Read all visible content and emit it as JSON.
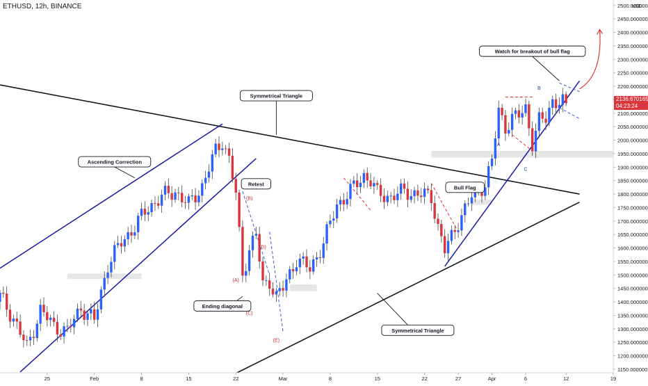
{
  "header": {
    "symbol": "ETHUSD, 12h, BINANCE"
  },
  "colors": {
    "up": "#2962ff",
    "down": "#d9363e",
    "trendline": "#131722",
    "channel": "#1a1aa6",
    "fib_blue": "#3b5bdb",
    "fib_red": "#e03131",
    "arrow": "#e03131",
    "sr_zone": "#e6e6e6",
    "wave_label_red": "#c92a2a",
    "wave_label_blue": "#1c3fb8"
  },
  "price_tag": {
    "price": "2136.670165",
    "countdown": "04:23:24"
  },
  "chart_data": {
    "type": "candlestick",
    "title": "ETHUSD, 12h, BINANCE",
    "y_axis": {
      "unit": "USD",
      "min": 1137,
      "max": 2520,
      "ticks": [
        "1150.000000",
        "1200.000000",
        "1250.000000",
        "1300.000000",
        "1350.000000",
        "1400.000000",
        "1450.000000",
        "1500.000000",
        "1550.000000",
        "1600.000000",
        "1650.000000",
        "1700.000000",
        "1750.000000",
        "1800.000000",
        "1850.000000",
        "1900.000000",
        "1950.000000",
        "2000.000000",
        "2050.000000",
        "2100.000000",
        "2150.000000",
        "2200.000000",
        "2250.000000",
        "2300.000000",
        "2350.000000",
        "2400.000000",
        "2450.000000",
        "2500.000000"
      ],
      "tick_values": [
        1150,
        1200,
        1250,
        1300,
        1350,
        1400,
        1450,
        1500,
        1550,
        1600,
        1650,
        1700,
        1750,
        1800,
        1850,
        1900,
        1950,
        2000,
        2050,
        2100,
        2150,
        2200,
        2250,
        2300,
        2350,
        2400,
        2450,
        2500
      ]
    },
    "x_axis": {
      "start": "2021-01-18",
      "end": "2021-04-19",
      "ticks": [
        {
          "label": "25",
          "date": "2021-01-25"
        },
        {
          "label": "Feb",
          "date": "2021-02-01"
        },
        {
          "label": "8",
          "date": "2021-02-08"
        },
        {
          "label": "15",
          "date": "2021-02-15"
        },
        {
          "label": "22",
          "date": "2021-02-22"
        },
        {
          "label": "Mar",
          "date": "2021-03-01"
        },
        {
          "label": "8",
          "date": "2021-03-08"
        },
        {
          "label": "15",
          "date": "2021-03-15"
        },
        {
          "label": "22",
          "date": "2021-03-22"
        },
        {
          "label": "27",
          "date": "2021-03-27"
        },
        {
          "label": "Apr",
          "date": "2021-04-01"
        },
        {
          "label": "6",
          "date": "2021-04-06"
        },
        {
          "label": "12",
          "date": "2021-04-12"
        },
        {
          "label": "19",
          "date": "2021-04-19"
        }
      ]
    },
    "last_price": 2136.670165,
    "anchors": [
      {
        "date": "2021-01-18",
        "close": 1420
      },
      {
        "date": "2021-01-20",
        "close": 1340
      },
      {
        "date": "2021-01-22",
        "close": 1230
      },
      {
        "date": "2021-01-24",
        "close": 1370
      },
      {
        "date": "2021-01-26",
        "close": 1310
      },
      {
        "date": "2021-01-28",
        "close": 1290
      },
      {
        "date": "2021-01-30",
        "close": 1380
      },
      {
        "date": "2021-02-01",
        "close": 1330
      },
      {
        "date": "2021-02-03",
        "close": 1540
      },
      {
        "date": "2021-02-05",
        "close": 1620
      },
      {
        "date": "2021-02-07",
        "close": 1680
      },
      {
        "date": "2021-02-09",
        "close": 1750
      },
      {
        "date": "2021-02-11",
        "close": 1790
      },
      {
        "date": "2021-02-13",
        "close": 1810
      },
      {
        "date": "2021-02-15",
        "close": 1760
      },
      {
        "date": "2021-02-17",
        "close": 1830
      },
      {
        "date": "2021-02-19",
        "close": 1960
      },
      {
        "date": "2021-02-20",
        "close": 2000
      },
      {
        "date": "2021-02-21",
        "close": 1930
      },
      {
        "date": "2021-02-22",
        "close": 1800
      },
      {
        "date": "2021-02-23",
        "close": 1500
      },
      {
        "date": "2021-02-24",
        "close": 1600
      },
      {
        "date": "2021-02-25",
        "close": 1650
      },
      {
        "date": "2021-02-26",
        "close": 1460
      },
      {
        "date": "2021-02-27",
        "close": 1480
      },
      {
        "date": "2021-02-28",
        "close": 1420
      },
      {
        "date": "2021-03-01",
        "close": 1450
      },
      {
        "date": "2021-03-03",
        "close": 1560
      },
      {
        "date": "2021-03-05",
        "close": 1520
      },
      {
        "date": "2021-03-07",
        "close": 1620
      },
      {
        "date": "2021-03-09",
        "close": 1760
      },
      {
        "date": "2021-03-11",
        "close": 1810
      },
      {
        "date": "2021-03-13",
        "close": 1870
      },
      {
        "date": "2021-03-14",
        "close": 1850
      },
      {
        "date": "2021-03-15",
        "close": 1800
      },
      {
        "date": "2021-03-17",
        "close": 1790
      },
      {
        "date": "2021-03-19",
        "close": 1810
      },
      {
        "date": "2021-03-21",
        "close": 1800
      },
      {
        "date": "2021-03-23",
        "close": 1790
      },
      {
        "date": "2021-03-24",
        "close": 1680
      },
      {
        "date": "2021-03-25",
        "close": 1590
      },
      {
        "date": "2021-03-26",
        "close": 1640
      },
      {
        "date": "2021-03-27",
        "close": 1700
      },
      {
        "date": "2021-03-29",
        "close": 1790
      },
      {
        "date": "2021-03-31",
        "close": 1840
      },
      {
        "date": "2021-04-01",
        "close": 1920
      },
      {
        "date": "2021-04-02",
        "close": 2110
      },
      {
        "date": "2021-04-03",
        "close": 2050
      },
      {
        "date": "2021-04-04",
        "close": 2080
      },
      {
        "date": "2021-04-05",
        "close": 2090
      },
      {
        "date": "2021-04-06",
        "close": 2120
      },
      {
        "date": "2021-04-07",
        "close": 1990
      },
      {
        "date": "2021-04-08",
        "close": 2070
      },
      {
        "date": "2021-04-09",
        "close": 2080
      },
      {
        "date": "2021-04-10",
        "close": 2150
      },
      {
        "date": "2021-04-11",
        "close": 2140
      },
      {
        "date": "2021-04-12",
        "close": 2136
      }
    ],
    "annotations": {
      "lines": [
        {
          "name": "upper-symmetrical-triangle-line",
          "style": "trendline",
          "points": [
            [
              "2021-01-18",
              2205
            ],
            [
              "2021-04-14",
              1800
            ]
          ]
        },
        {
          "name": "lower-symmetrical-triangle-line",
          "style": "trendline",
          "points": [
            [
              "2021-02-22",
              1135
            ],
            [
              "2021-04-14",
              1770
            ]
          ]
        },
        {
          "name": "ascending-channel-upper-line",
          "style": "channel",
          "points": [
            [
              "2021-01-18",
              1525
            ],
            [
              "2021-02-20",
              2060
            ]
          ]
        },
        {
          "name": "ascending-channel-lower-line",
          "style": "channel",
          "points": [
            [
              "2021-01-21",
              1140
            ],
            [
              "2021-02-25",
              1932
            ]
          ]
        },
        {
          "name": "april-support-line",
          "style": "channel",
          "points": [
            [
              "2021-03-25",
              1532
            ],
            [
              "2021-04-14",
              2220
            ]
          ]
        },
        {
          "name": "flag-upper-line",
          "style": "fib_blue_dashed",
          "points": [
            [
              "2021-04-11",
              2212
            ],
            [
              "2021-04-14",
              2180
            ]
          ]
        },
        {
          "name": "flag-lower-line",
          "style": "fib_blue_dashed",
          "points": [
            [
              "2021-04-11",
              2120
            ],
            [
              "2021-04-14",
              2080
            ]
          ]
        },
        {
          "name": "wave-dashed-1",
          "style": "fib_blue_dashed",
          "points": [
            [
              "2021-02-23",
              1810
            ],
            [
              "2021-02-27",
              1500
            ]
          ]
        },
        {
          "name": "wave-dashed-2",
          "style": "fib_blue_dashed",
          "points": [
            [
              "2021-02-27",
              1660
            ],
            [
              "2021-03-01",
              1290
            ]
          ]
        },
        {
          "name": "wave-dashed-3",
          "style": "fib_red_dashed",
          "points": [
            [
              "2021-03-10",
              1860
            ],
            [
              "2021-03-14",
              1740
            ]
          ]
        },
        {
          "name": "wave-dashed-4",
          "style": "fib_red_dashed",
          "points": [
            [
              "2021-03-23",
              1840
            ],
            [
              "2021-03-27",
              1660
            ]
          ]
        },
        {
          "name": "wave-dashed-5",
          "style": "fib_red_dashed",
          "points": [
            [
              "2021-04-03",
              2160
            ],
            [
              "2021-04-07",
              2160
            ]
          ]
        },
        {
          "name": "wave-dashed-6",
          "style": "fib_red_dashed",
          "points": [
            [
              "2021-04-04",
              2020
            ],
            [
              "2021-04-07",
              1960
            ]
          ]
        }
      ],
      "zones": [
        {
          "name": "resistance-zone-top",
          "from": "2021-03-23",
          "to": "2021-04-19",
          "low": 1935,
          "high": 1960
        },
        {
          "name": "resistance-zone-mid",
          "from": "2021-03-29",
          "to": "2021-04-01",
          "low": 1760,
          "high": 1780
        },
        {
          "name": "support-zone-left",
          "from": "2021-01-28",
          "to": "2021-02-08",
          "low": 1485,
          "high": 1505
        },
        {
          "name": "support-zone-mid",
          "from": "2021-03-02",
          "to": "2021-03-06",
          "low": 1440,
          "high": 1465
        }
      ],
      "callouts": [
        {
          "name": "callout-symmetrical-triangle-top",
          "text": "Symmetrical Triangle",
          "anchor": [
            "2021-02-28",
            2165
          ],
          "pointer": [
            "2021-02-28",
            2020
          ]
        },
        {
          "name": "callout-ascending-correction",
          "text": "Ascending Correction",
          "anchor": [
            "2021-02-04",
            1920
          ],
          "pointer": [
            "2021-02-07",
            1860
          ]
        },
        {
          "name": "callout-retest",
          "text": "Retest",
          "anchor": [
            "2021-02-25",
            1838
          ],
          "pointer": [
            "2021-02-23",
            1830
          ]
        },
        {
          "name": "callout-ending-diagonal",
          "text": "Ending diagonal",
          "anchor": [
            "2021-02-20",
            1385
          ],
          "pointer": [
            "2021-02-23",
            1420
          ]
        },
        {
          "name": "callout-bull-flag",
          "text": "Bull Flag",
          "anchor": [
            "2021-03-28",
            1825
          ],
          "pointer": [
            "2021-03-26",
            1815
          ]
        },
        {
          "name": "callout-symmetrical-triangle-bottom",
          "text": "Symmetrical Triangle",
          "anchor": [
            "2021-03-21",
            1295
          ],
          "pointer": [
            "2021-03-15",
            1432
          ]
        },
        {
          "name": "callout-watch-breakout",
          "text": "Watch for breakout of bull flag",
          "anchor": [
            "2021-04-07",
            2330
          ],
          "pointer": [
            "2021-04-11",
            2220
          ]
        }
      ],
      "wave_labels": [
        {
          "text": "(A)",
          "date": "2021-02-22",
          "price": 1475,
          "color": "wave_label_red"
        },
        {
          "text": "(B)",
          "date": "2021-02-24",
          "price": 1778,
          "color": "wave_label_red"
        },
        {
          "text": "(C)",
          "date": "2021-02-24",
          "price": 1352,
          "color": "wave_label_red"
        },
        {
          "text": "(D)",
          "date": "2021-02-26",
          "price": 1597,
          "color": "wave_label_red"
        },
        {
          "text": "(E)",
          "date": "2021-02-28",
          "price": 1252,
          "color": "wave_label_red"
        },
        {
          "text": "A",
          "date": "2021-04-02",
          "price": 1978,
          "color": "wave_label_blue"
        },
        {
          "text": "B",
          "date": "2021-04-08",
          "price": 2187,
          "color": "wave_label_blue"
        },
        {
          "text": "C",
          "date": "2021-04-06",
          "price": 1886,
          "color": "wave_label_blue"
        }
      ],
      "arrow": {
        "name": "breakout-arrow",
        "from": [
          "2021-04-14",
          2190
        ],
        "to": [
          "2021-04-17",
          2410
        ]
      }
    }
  }
}
